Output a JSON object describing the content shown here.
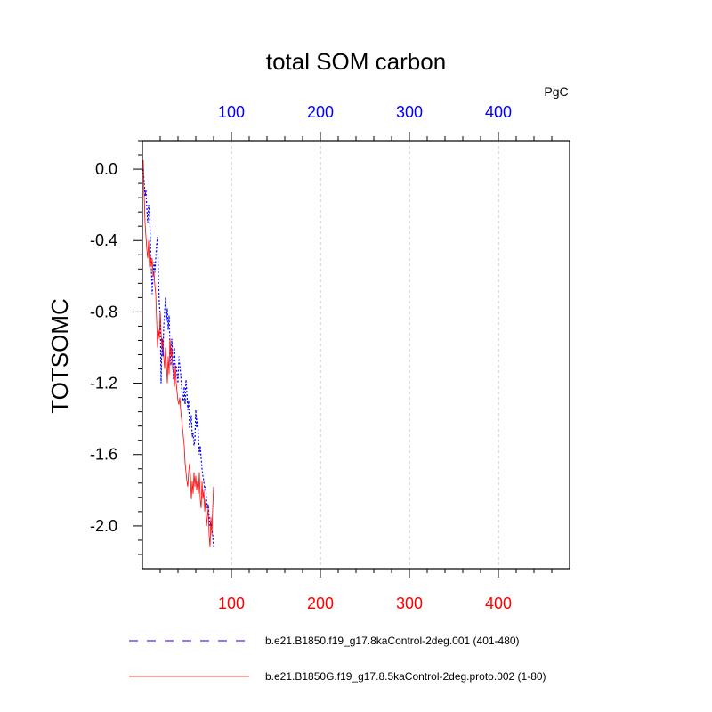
{
  "chart_data": {
    "type": "line",
    "title": "total SOM carbon",
    "ylabel": "TOTSOMC",
    "units": "PgC",
    "xlim": [
      0,
      480
    ],
    "ylim": [
      -2.24,
      0.16
    ],
    "grid": "vertical dashed at top-axis ticks",
    "top_ticks": [
      100,
      200,
      300,
      400
    ],
    "top_tick_labels": [
      "100",
      "200",
      "300",
      "400"
    ],
    "top_tick_color": "#0000ff",
    "bottom_ticks": [
      100,
      200,
      300,
      400
    ],
    "bottom_tick_labels": [
      "100",
      "200",
      "300",
      "400"
    ],
    "bottom_tick_color": "#ff0000",
    "y_ticks": [
      0.0,
      -0.4,
      -0.8,
      -1.2,
      -1.6,
      -2.0
    ],
    "y_tick_labels": [
      "0.0",
      "-0.4",
      "-0.8",
      "-1.2",
      "-1.6",
      "-2.0"
    ],
    "legend_position": "bottom",
    "series": [
      {
        "name": "b.e21.B1850.f19_g17.8kaControl-2deg.001 (401-480)",
        "color": "#0000ff",
        "style": "dashed",
        "x": [
          1,
          2,
          3,
          4,
          5,
          6,
          7,
          8,
          9,
          10,
          11,
          12,
          13,
          14,
          15,
          16,
          17,
          18,
          19,
          20,
          21,
          22,
          23,
          24,
          25,
          26,
          27,
          28,
          29,
          30,
          31,
          32,
          33,
          34,
          35,
          36,
          37,
          38,
          39,
          40,
          41,
          42,
          43,
          44,
          45,
          46,
          47,
          48,
          49,
          50,
          51,
          52,
          53,
          54,
          55,
          56,
          57,
          58,
          59,
          60,
          61,
          62,
          63,
          64,
          65,
          66,
          67,
          68,
          69,
          70,
          71,
          72,
          73,
          74,
          75,
          76,
          77,
          78,
          79,
          80
        ],
        "y": [
          0.0,
          -0.08,
          -0.15,
          -0.12,
          -0.22,
          -0.3,
          -0.2,
          -0.25,
          -0.4,
          -0.55,
          -0.7,
          -0.6,
          -0.52,
          -0.58,
          -0.5,
          -0.42,
          -0.38,
          -0.6,
          -0.75,
          -0.82,
          -1.2,
          -0.95,
          -1.05,
          -0.88,
          -0.8,
          -0.72,
          -0.85,
          -0.78,
          -0.9,
          -0.82,
          -1.0,
          -1.1,
          -0.95,
          -1.05,
          -1.18,
          -1.0,
          -1.12,
          -1.1,
          -1.15,
          -1.2,
          -1.05,
          -1.1,
          -1.15,
          -1.22,
          -1.28,
          -1.3,
          -1.22,
          -1.32,
          -1.18,
          -1.25,
          -1.35,
          -1.3,
          -1.45,
          -1.42,
          -1.38,
          -1.5,
          -1.48,
          -1.55,
          -1.52,
          -1.35,
          -1.45,
          -1.4,
          -1.5,
          -1.6,
          -1.55,
          -1.62,
          -1.68,
          -1.72,
          -1.75,
          -1.8,
          -1.78,
          -1.85,
          -1.9,
          -1.88,
          -1.95,
          -2.0,
          -1.97,
          -2.02,
          -2.05,
          -2.12
        ]
      },
      {
        "name": "b.e21.B1850G.f19_g17.8.5kaControl-2deg.proto.002 (1-80)",
        "color": "#ff0000",
        "style": "solid",
        "x": [
          1,
          2,
          3,
          4,
          5,
          6,
          7,
          8,
          9,
          10,
          11,
          12,
          13,
          14,
          15,
          16,
          17,
          18,
          19,
          20,
          21,
          22,
          23,
          24,
          25,
          26,
          27,
          28,
          29,
          30,
          31,
          32,
          33,
          34,
          35,
          36,
          37,
          38,
          39,
          40,
          41,
          42,
          43,
          44,
          45,
          46,
          47,
          48,
          49,
          50,
          51,
          52,
          53,
          54,
          55,
          56,
          57,
          58,
          59,
          60,
          61,
          62,
          63,
          64,
          65,
          66,
          67,
          68,
          69,
          70,
          71,
          72,
          73,
          74,
          75,
          76,
          77,
          78,
          79,
          80
        ],
        "y": [
          0.05,
          -0.15,
          -0.3,
          -0.38,
          -0.45,
          -0.5,
          -0.4,
          -0.55,
          -0.48,
          -0.55,
          -0.5,
          -0.6,
          -0.58,
          -0.65,
          -0.7,
          -0.85,
          -1.0,
          -0.9,
          -0.95,
          -0.8,
          -0.92,
          -1.0,
          -0.95,
          -1.05,
          -1.12,
          -1.0,
          -1.1,
          -1.2,
          -1.05,
          -1.15,
          -0.95,
          -1.05,
          -1.0,
          -1.12,
          -1.15,
          -1.22,
          -1.1,
          -1.2,
          -1.25,
          -1.3,
          -1.32,
          -1.28,
          -1.35,
          -1.4,
          -1.45,
          -1.5,
          -1.55,
          -1.65,
          -1.7,
          -1.75,
          -1.78,
          -1.7,
          -1.65,
          -1.72,
          -1.85,
          -1.75,
          -1.82,
          -1.7,
          -1.78,
          -1.72,
          -1.8,
          -1.75,
          -1.82,
          -1.7,
          -1.85,
          -1.9,
          -1.75,
          -1.85,
          -1.8,
          -1.92,
          -1.85,
          -2.0,
          -1.95,
          -1.9,
          -2.05,
          -2.12,
          -1.95,
          -2.05,
          -1.9,
          -1.78
        ]
      }
    ]
  }
}
